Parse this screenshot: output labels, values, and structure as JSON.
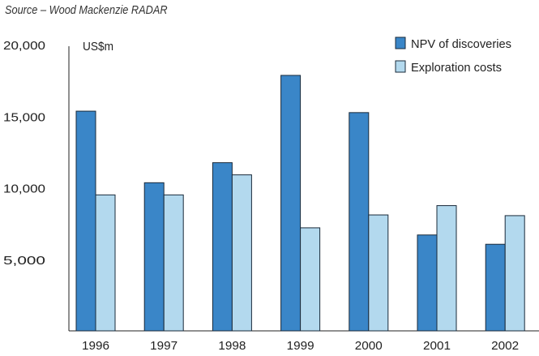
{
  "source": "Source – Wood Mackenzie RADAR",
  "chart_data": {
    "type": "bar",
    "title": "",
    "ylabel": "US$m",
    "xlabel": "",
    "ylim": [
      0,
      20000
    ],
    "yticks": [
      5000,
      10000,
      15000,
      20000
    ],
    "ytick_labels": [
      "5,000",
      "10,000",
      "15,000",
      "20,000"
    ],
    "categories": [
      "1996",
      "1997",
      "1998",
      "1999",
      "2000",
      "2001",
      "2002"
    ],
    "series": [
      {
        "name": "NPV of discoveries",
        "color": "#3a86c8",
        "values": [
          15350,
          10350,
          11750,
          17850,
          15250,
          6700,
          6050
        ]
      },
      {
        "name": "Exploration costs",
        "color": "#b3d9ee",
        "values": [
          9500,
          9500,
          10900,
          7200,
          8100,
          8750,
          8050
        ]
      }
    ],
    "legend_position": "top-right",
    "grid": false
  }
}
